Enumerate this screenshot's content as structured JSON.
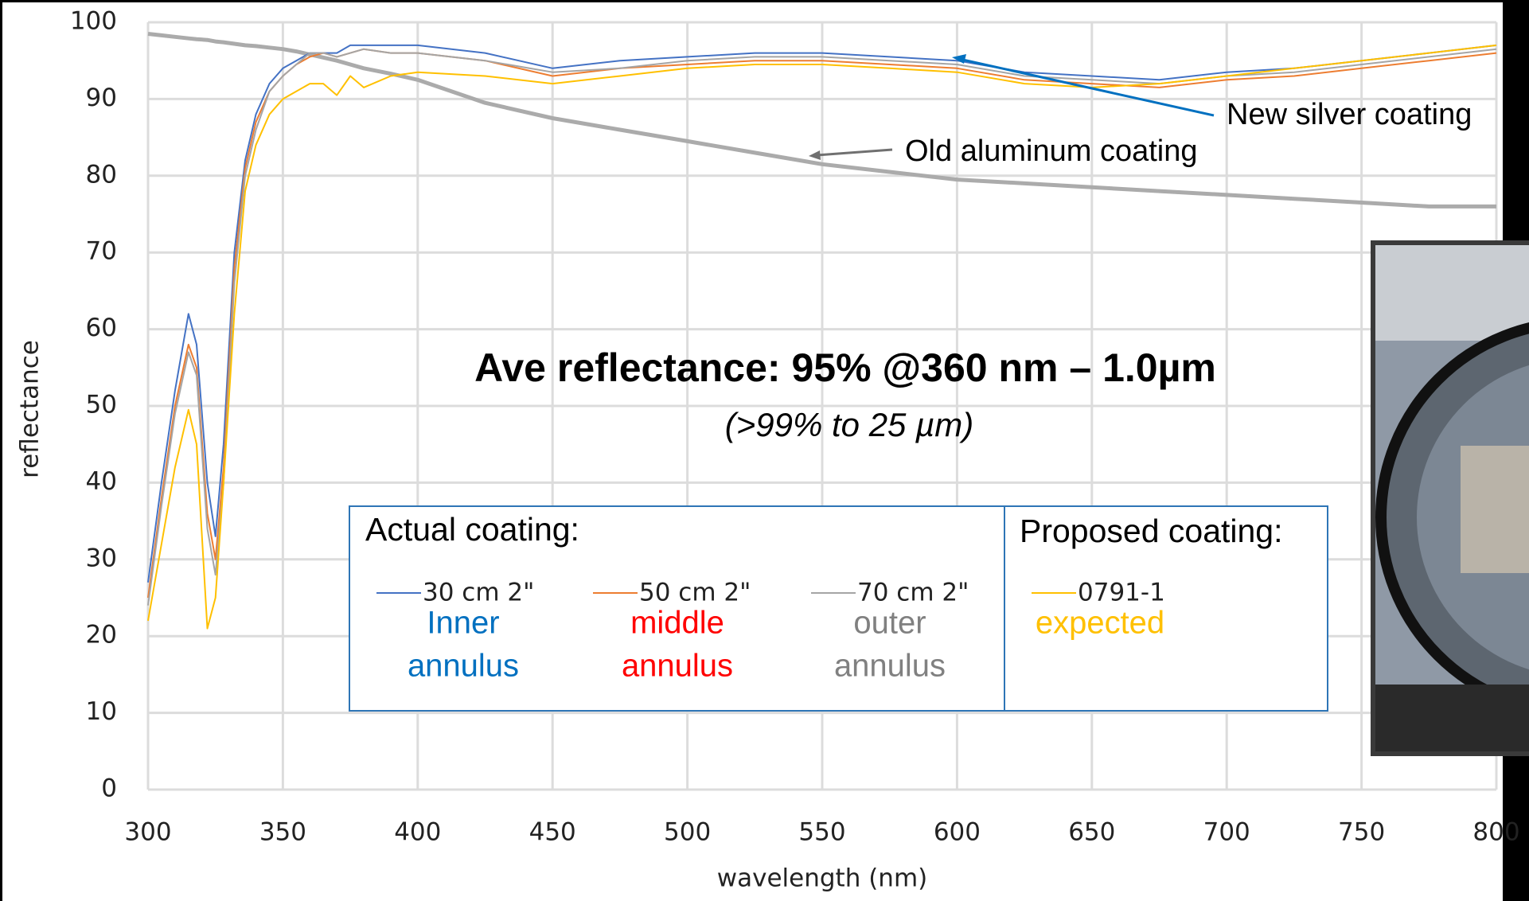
{
  "chart_data": {
    "type": "line",
    "title": "Ave reflectance: 95% @360 nm – 1.0µm",
    "subtitle": "(>99% to 25 µm)",
    "x_label": "wavelength (nm)",
    "y_label": "reflectance",
    "xlim": [
      300,
      800
    ],
    "ylim": [
      0,
      100
    ],
    "xticks": [
      300,
      350,
      400,
      450,
      500,
      550,
      600,
      650,
      700,
      750,
      800
    ],
    "yticks": [
      0,
      10,
      20,
      30,
      40,
      50,
      60,
      70,
      80,
      90,
      100
    ],
    "grid": true,
    "annotations": [
      "New silver coating",
      "Old aluminum coating"
    ],
    "legend_titles": [
      "Actual coating:",
      "Proposed coating:"
    ],
    "x": [
      300,
      305,
      310,
      315,
      318,
      322,
      325,
      328,
      332,
      336,
      340,
      345,
      350,
      355,
      360,
      365,
      370,
      375,
      380,
      390,
      400,
      425,
      450,
      475,
      500,
      525,
      550,
      575,
      600,
      625,
      650,
      675,
      700,
      725,
      750,
      775,
      800
    ],
    "series": [
      {
        "name": "30 cm 2\"",
        "description": [
          "Inner",
          "annulus"
        ],
        "description_color": "#0070c0",
        "color": "#4472c4",
        "width": 2,
        "values": [
          27,
          40,
          52,
          62,
          58,
          40,
          33,
          45,
          70,
          82,
          88,
          92,
          94,
          95,
          96,
          96,
          96,
          97,
          97,
          97,
          97,
          96,
          94,
          95,
          95.5,
          96,
          96,
          95.5,
          95,
          93.5,
          93,
          92.5,
          93.5,
          94,
          95,
          96,
          97
        ]
      },
      {
        "name": "50 cm 2\"",
        "description": [
          "middle",
          "annulus"
        ],
        "description_color": "#ff0000",
        "color": "#ed7d31",
        "width": 2,
        "values": [
          25,
          38,
          50,
          58,
          55,
          36,
          30,
          42,
          68,
          81,
          87,
          91,
          93,
          94.5,
          95.5,
          96,
          95.5,
          96,
          96.5,
          96,
          96,
          95,
          93,
          94,
          94.5,
          95,
          95,
          94.5,
          94,
          92.5,
          92,
          91.5,
          92.5,
          93,
          94,
          95,
          96
        ]
      },
      {
        "name": "70 cm 2\"",
        "description": [
          "outer",
          "annulus"
        ],
        "description_color": "#808080",
        "color": "#a5a5a5",
        "width": 2,
        "values": [
          24,
          37,
          49,
          57,
          54,
          34,
          28,
          40,
          66,
          80,
          86,
          91,
          93,
          94.5,
          96,
          96,
          95.5,
          96,
          96.5,
          96,
          96,
          95,
          93.5,
          94,
          95,
          95.5,
          95.5,
          95,
          94.5,
          93,
          92.5,
          92,
          93,
          93.5,
          94.5,
          95.5,
          96.5
        ]
      },
      {
        "name": "0791-1",
        "description": [
          "expected"
        ],
        "description_color": "#ffc000",
        "color": "#ffc000",
        "width": 2,
        "values": [
          22,
          32,
          42,
          49.5,
          45,
          21,
          25,
          40,
          62,
          78,
          84,
          88,
          90,
          91,
          92,
          92,
          90.5,
          93,
          91.5,
          93,
          93.5,
          93,
          92,
          93,
          94,
          94.5,
          94.5,
          94,
          93.5,
          92,
          91.5,
          92,
          93,
          94,
          95,
          96,
          97
        ]
      },
      {
        "color": "#ababab",
        "width": 5,
        "values": [
          98.5,
          98.3,
          98.1,
          97.9,
          97.8,
          97.7,
          97.5,
          97.4,
          97.2,
          97,
          96.9,
          96.7,
          96.5,
          96.2,
          95.8,
          95.4,
          95,
          94.5,
          94,
          93.3,
          92.5,
          89.5,
          87.5,
          86,
          84.5,
          83,
          81.5,
          80.5,
          79.5,
          79,
          78.5,
          78,
          77.5,
          77,
          76.5,
          76,
          76
        ]
      }
    ]
  }
}
